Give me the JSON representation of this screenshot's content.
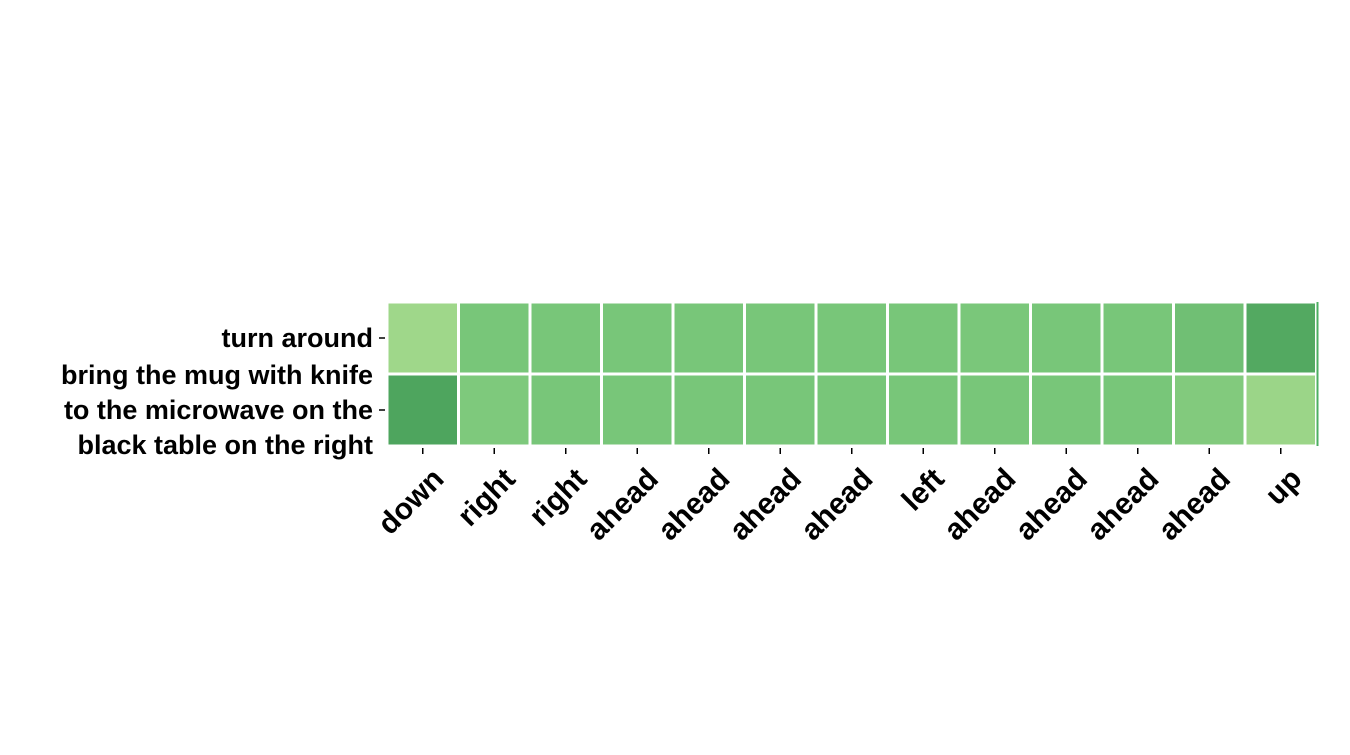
{
  "chart_data": {
    "type": "heatmap",
    "title": "",
    "xlabel": "",
    "ylabel": "",
    "rows": [
      [
        "turn around"
      ],
      [
        "bring the mug with knife",
        "to the microwave on the",
        "black table on the right"
      ]
    ],
    "columns": [
      "down",
      "right",
      "right",
      "ahead",
      "ahead",
      "ahead",
      "ahead",
      "left",
      "ahead",
      "ahead",
      "ahead",
      "ahead",
      "up"
    ],
    "values": [
      [
        0.3,
        0.5,
        0.5,
        0.5,
        0.5,
        0.5,
        0.5,
        0.5,
        0.49,
        0.5,
        0.5,
        0.55,
        0.72
      ],
      [
        0.75,
        0.47,
        0.5,
        0.5,
        0.5,
        0.5,
        0.5,
        0.5,
        0.5,
        0.5,
        0.5,
        0.45,
        0.32
      ]
    ],
    "colormap": {
      "low": "#d9f0a3",
      "mid": "#78c679",
      "high": "#238443"
    },
    "grid_line_color": "#ffffff",
    "colorbar": false
  }
}
